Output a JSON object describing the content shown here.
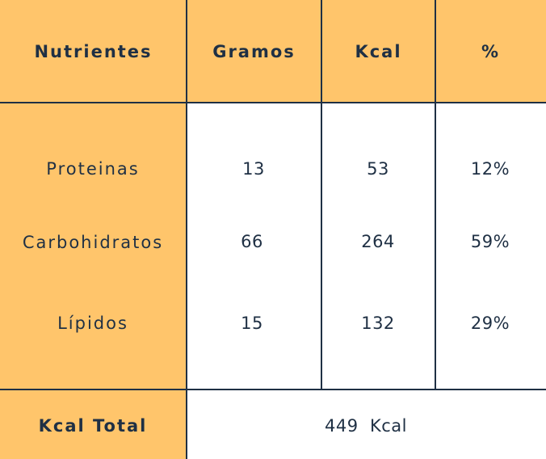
{
  "table": {
    "headers": [
      "Nutrientes",
      "Gramos",
      "Kcal",
      "%"
    ],
    "rows": [
      {
        "label": "Proteinas",
        "gramos": "13",
        "kcal": "53",
        "pct": "12%"
      },
      {
        "label": "Carbohidratos",
        "gramos": "66",
        "kcal": "264",
        "pct": "59%"
      },
      {
        "label": "Lípidos",
        "gramos": "15",
        "kcal": "132",
        "pct": "29%"
      }
    ],
    "total_label": "Kcal Total",
    "total_value": "449  Kcal"
  },
  "colors": {
    "header_bg": "#ffc56b",
    "text": "#1f3044",
    "border": "#1f3044",
    "body_bg": "#ffffff"
  }
}
